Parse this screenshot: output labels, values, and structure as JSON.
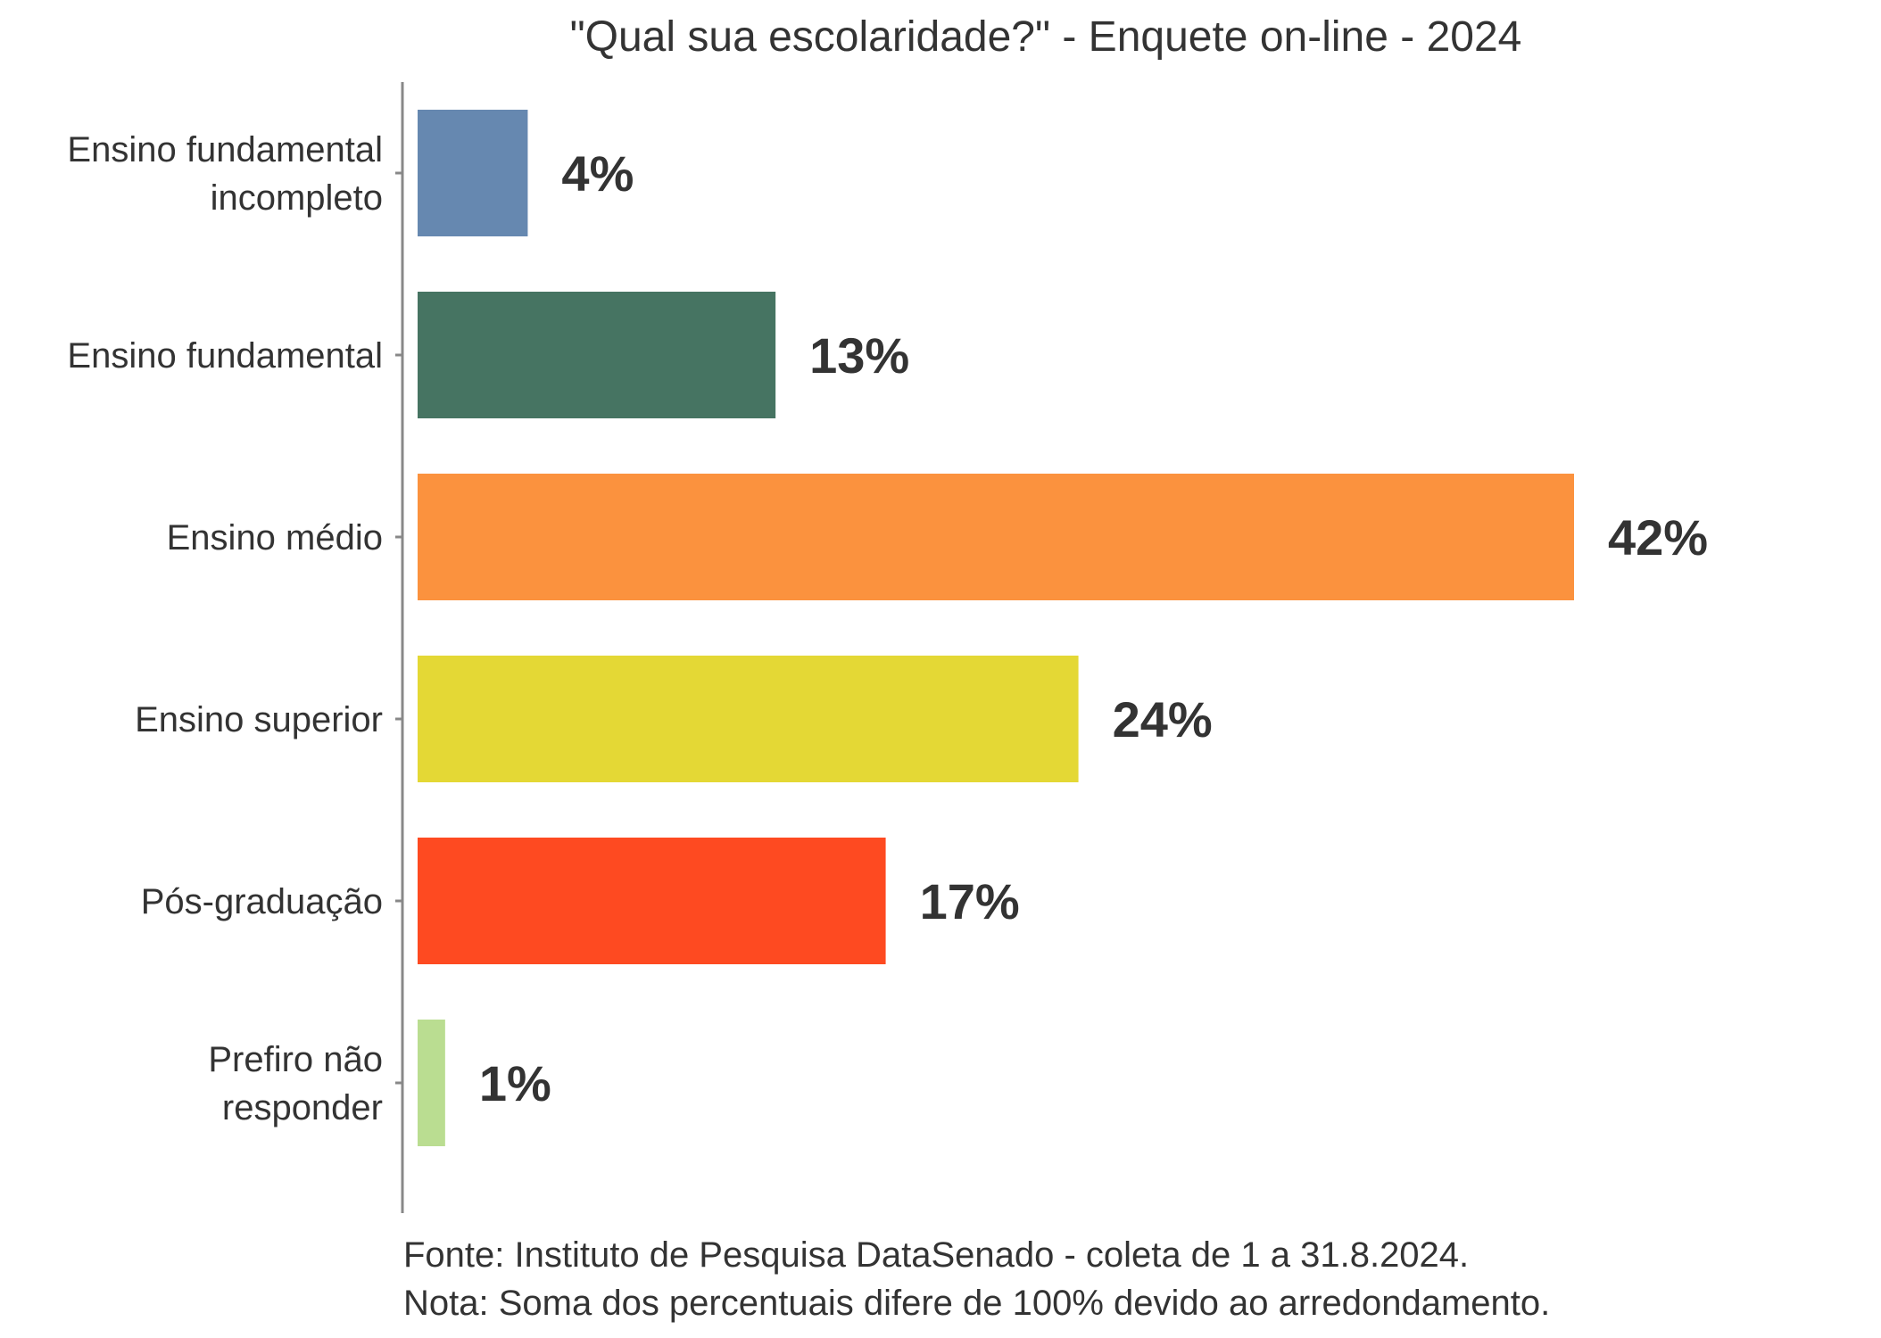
{
  "chart_data": {
    "type": "bar",
    "orientation": "horizontal",
    "title": "\"Qual sua escolaridade?\" - Enquete on-line - 2024",
    "categories": [
      [
        "Ensino fundamental",
        "incompleto"
      ],
      [
        "Ensino fundamental"
      ],
      [
        "Ensino médio"
      ],
      [
        "Ensino superior"
      ],
      [
        "Pós-graduação"
      ],
      [
        "Prefiro não",
        "responder"
      ]
    ],
    "values": [
      4,
      13,
      42,
      24,
      17,
      1
    ],
    "value_labels": [
      "4%",
      "13%",
      "42%",
      "24%",
      "17%",
      "1%"
    ],
    "colors": [
      "#6688b0",
      "#467462",
      "#fb923e",
      "#e4d835",
      "#fe4a21",
      "#badd91"
    ],
    "xlim": [
      0,
      42
    ],
    "xlabel": "",
    "ylabel": "",
    "grid": false,
    "legend": "none",
    "notes": [
      "Fonte: Instituto de Pesquisa DataSenado - coleta de 1 a 31.8.2024.",
      "Nota: Soma dos percentuais difere de 100% devido ao arredondamento."
    ]
  }
}
